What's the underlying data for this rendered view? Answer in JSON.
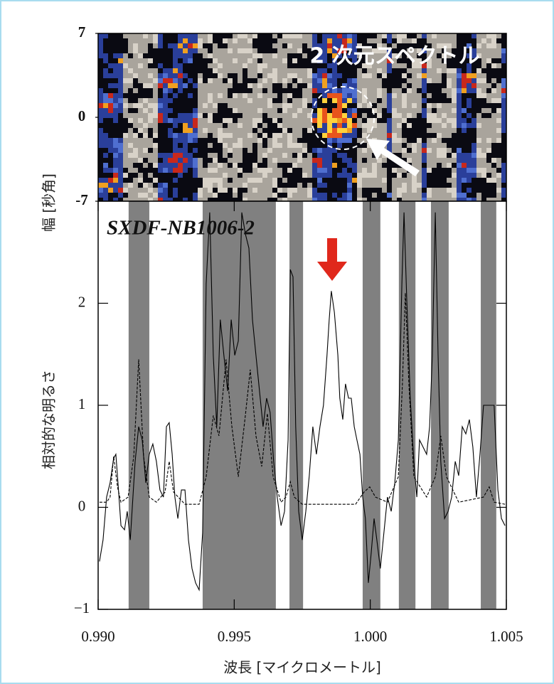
{
  "chart_data": [
    {
      "type": "image",
      "title": "2 次元スペクトル",
      "ylabel": "幅 [秒角]",
      "ylim": [
        -7,
        7
      ],
      "yticks": [
        7,
        0,
        -7
      ]
    },
    {
      "type": "line",
      "annotation": "SXDF-NB1006-2",
      "ylabel": "相対的な明るさ",
      "xlabel": "波長 [マイクロメートル]",
      "xlim": [
        0.99,
        1.005
      ],
      "xticks": [
        {
          "value": 0.99,
          "label": "0.990"
        },
        0.995,
        {
          "value": 1,
          "label": "1.000"
        },
        1.005
      ],
      "ylim": [
        -1,
        3
      ],
      "yticks": [
        {
          "value": -1,
          "label": "−1"
        },
        0,
        1,
        2
      ],
      "mask_color": "#808080",
      "masked_regions": [
        [
          0.99112,
          0.99188
        ],
        [
          0.99384,
          0.99653
        ],
        [
          0.99703,
          0.99753
        ],
        [
          0.99972,
          1.00037
        ],
        [
          1.00105,
          1.00166
        ],
        [
          1.00223,
          1.00288
        ],
        [
          1.00406,
          1.00463
        ]
      ],
      "series": [
        {
          "color": "#000000",
          "dashed": false,
          "x": [
            0.99005,
            0.99018,
            0.99031,
            0.99044,
            0.99057,
            0.99065,
            0.99073,
            0.99084,
            0.99097,
            0.99107,
            0.99118,
            0.99136,
            0.99149,
            0.99162,
            0.99175,
            0.99188,
            0.99201,
            0.99214,
            0.99227,
            0.9924,
            0.99251,
            0.99261,
            0.99272,
            0.99282,
            0.99293,
            0.99306,
            0.99319,
            0.99332,
            0.99345,
            0.99358,
            0.99371,
            0.99384,
            0.99397,
            0.9941,
            0.99423,
            0.99436,
            0.99449,
            0.99462,
            0.99476,
            0.99489,
            0.99502,
            0.99515,
            0.99528,
            0.99541,
            0.99554,
            0.99567,
            0.9958,
            0.99593,
            0.99606,
            0.99619,
            0.99632,
            0.99645,
            0.99658,
            0.99672,
            0.99685,
            0.99698,
            0.99706,
            0.99716,
            0.99726,
            0.99737,
            0.9975,
            0.99763,
            0.99776,
            0.99789,
            0.99802,
            0.99815,
            0.99828,
            0.99841,
            0.99849,
            0.99857,
            0.99868,
            0.99881,
            0.99888,
            0.99899,
            0.99909,
            0.9992,
            0.9993,
            0.99941,
            0.99951,
            0.99962,
            0.99972,
            0.99982,
            0.99993,
            1.00003,
            1.00014,
            1.00024,
            1.00037,
            1.0005,
            1.00063,
            1.00077,
            1.0009,
            1.00103,
            1.00116,
            1.00124,
            1.00134,
            1.00147,
            1.0016,
            1.00171,
            1.00181,
            1.00194,
            1.00207,
            1.00218,
            1.00228,
            1.00239,
            1.00249,
            1.00259,
            1.00273,
            1.00286,
            1.00299,
            1.00312,
            1.00325,
            1.00338,
            1.00351,
            1.00364,
            1.00377,
            1.0039,
            1.00403,
            1.00416,
            1.00429,
            1.00442,
            1.00455,
            1.00469,
            1.00482,
            1.00495
          ],
          "values": [
            -0.53,
            -0.32,
            0.1,
            0.24,
            0.48,
            0.52,
            0.24,
            -0.18,
            -0.22,
            -0.04,
            -0.32,
            0.45,
            0.79,
            0.66,
            0.24,
            0.52,
            0.62,
            0.45,
            0.17,
            0.1,
            0.79,
            0.83,
            0.52,
            0.1,
            -0.11,
            0.17,
            0.17,
            -0.32,
            -0.6,
            -0.74,
            -0.81,
            -0.25,
            2.19,
            2.89,
            1.49,
            0.79,
            1.84,
            1.49,
            1.14,
            1.84,
            1.49,
            1.63,
            2.89,
            2.68,
            2.54,
            1.84,
            1.49,
            1.14,
            0.79,
            1.07,
            0.93,
            0.45,
            0.1,
            -0.18,
            -0.04,
            0.66,
            2.33,
            2.26,
            0.79,
            -0.04,
            -0.32,
            -0.04,
            0.31,
            0.79,
            0.52,
            0.79,
            1,
            1.49,
            1.84,
            2.12,
            1.91,
            1.49,
            1.07,
            0.86,
            1.21,
            1.07,
            1.07,
            0.79,
            0.66,
            0.52,
            0.1,
            -0.11,
            -0.74,
            -0.46,
            -0.11,
            -0.32,
            -0.6,
            -0.25,
            0.1,
            -0.04,
            0.24,
            0.66,
            2.19,
            2.89,
            2.05,
            1.07,
            0.45,
            0.1,
            0.66,
            0.59,
            0.52,
            0.79,
            1.49,
            2.89,
            1.49,
            0.45,
            -0.11,
            -0.04,
            0.1,
            0.45,
            0.31,
            0.79,
            0.72,
            0.86,
            0.59,
            0.1,
            0.52,
            1,
            1,
            1,
            1,
            0.17,
            -0.11,
            -0.18
          ]
        },
        {
          "color": "#000000",
          "dashed": true,
          "x": [
            0.99005,
            0.99031,
            0.99044,
            0.99057,
            0.99071,
            0.99084,
            0.9911,
            0.99131,
            0.99149,
            0.99167,
            0.99188,
            0.99214,
            0.99246,
            0.99261,
            0.99277,
            0.99319,
            0.99371,
            0.99397,
            0.99423,
            0.99444,
            0.9947,
            0.99491,
            0.99515,
            0.99541,
            0.99559,
            0.9958,
            0.99601,
            0.99622,
            0.99643,
            0.99672,
            0.9969,
            0.99706,
            0.99721,
            0.9975,
            0.99946,
            0.99977,
            0.99998,
            1.00019,
            1.00063,
            1.00103,
            1.00118,
            1.00129,
            1.00142,
            1.0016,
            1.00207,
            1.00239,
            1.00259,
            1.0028,
            1.00325,
            1.00416,
            1.00437,
            1.00455,
            1.00495
          ],
          "values": [
            0.05,
            0.05,
            0.1,
            0.5,
            0.2,
            0.05,
            0.1,
            0.5,
            1.45,
            0.5,
            0.1,
            0.05,
            0.15,
            0.45,
            0.15,
            0.03,
            0.03,
            0.3,
            0.9,
            0.7,
            1.45,
            0.8,
            0.3,
            0.9,
            1.35,
            0.7,
            0.4,
            0.92,
            0.3,
            0.05,
            0.1,
            0.25,
            0.1,
            0.03,
            0.03,
            0.15,
            0.2,
            0.1,
            0.05,
            0.3,
            1.2,
            2.1,
            1.2,
            0.3,
            0.1,
            0.3,
            0.7,
            0.3,
            0.05,
            0.1,
            0.2,
            0.05,
            0.03
          ]
        }
      ]
    }
  ]
}
